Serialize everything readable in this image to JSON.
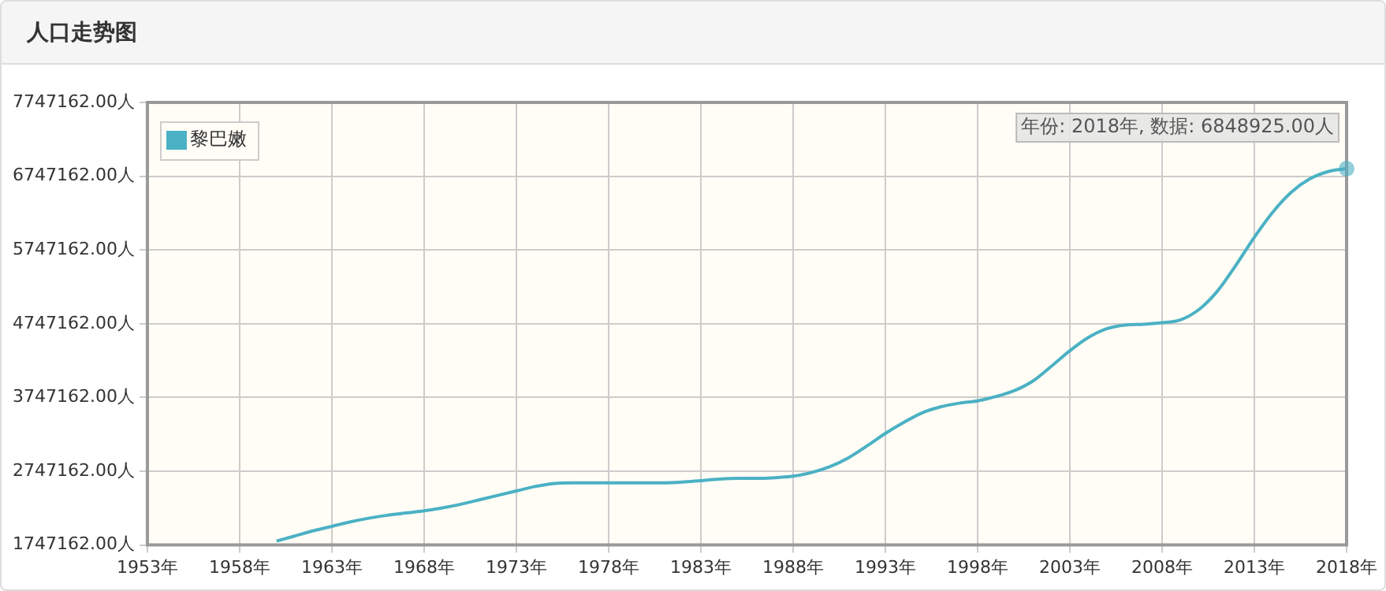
{
  "chart_data": {
    "type": "line",
    "title": "人口走势图",
    "x": [
      1960,
      1961,
      1962,
      1963,
      1964,
      1965,
      1966,
      1967,
      1968,
      1969,
      1970,
      1971,
      1972,
      1973,
      1974,
      1975,
      1976,
      1977,
      1978,
      1979,
      1980,
      1981,
      1982,
      1983,
      1984,
      1985,
      1986,
      1987,
      1988,
      1989,
      1990,
      1991,
      1992,
      1993,
      1994,
      1995,
      1996,
      1997,
      1998,
      1999,
      2000,
      2001,
      2002,
      2003,
      2004,
      2005,
      2006,
      2007,
      2008,
      2009,
      2010,
      2011,
      2012,
      2013,
      2014,
      2015,
      2016,
      2017,
      2018
    ],
    "series": [
      {
        "name": "黎巴嫩",
        "color": "#4bb1c4",
        "values": [
          1800000,
          1870000,
          1940000,
          2000000,
          2060000,
          2110000,
          2150000,
          2180000,
          2210000,
          2250000,
          2300000,
          2360000,
          2420000,
          2480000,
          2540000,
          2580000,
          2590000,
          2590000,
          2590000,
          2590000,
          2590000,
          2590000,
          2600000,
          2620000,
          2640000,
          2650000,
          2650000,
          2660000,
          2680000,
          2730000,
          2810000,
          2930000,
          3090000,
          3260000,
          3410000,
          3540000,
          3620000,
          3670000,
          3700000,
          3760000,
          3840000,
          3970000,
          4170000,
          4380000,
          4560000,
          4680000,
          4730000,
          4740000,
          4760000,
          4800000,
          4940000,
          5190000,
          5540000,
          5920000,
          6260000,
          6530000,
          6710000,
          6810000,
          6848925
        ]
      }
    ],
    "xlim": [
      1953,
      2018
    ],
    "xticks": [
      {
        "value": 1953,
        "label": "1953年"
      },
      {
        "value": 1958,
        "label": "1958年"
      },
      {
        "value": 1963,
        "label": "1963年"
      },
      {
        "value": 1968,
        "label": "1968年"
      },
      {
        "value": 1973,
        "label": "1973年"
      },
      {
        "value": 1978,
        "label": "1978年"
      },
      {
        "value": 1983,
        "label": "1983年"
      },
      {
        "value": 1988,
        "label": "1988年"
      },
      {
        "value": 1993,
        "label": "1993年"
      },
      {
        "value": 1998,
        "label": "1998年"
      },
      {
        "value": 2003,
        "label": "2003年"
      },
      {
        "value": 2008,
        "label": "2008年"
      },
      {
        "value": 2013,
        "label": "2013年"
      },
      {
        "value": 2018,
        "label": "2018年"
      }
    ],
    "ylim": [
      1747162,
      7747162
    ],
    "yticks": [
      {
        "value": 1747162,
        "label": "1747162.00人"
      },
      {
        "value": 2747162,
        "label": "2747162.00人"
      },
      {
        "value": 3747162,
        "label": "3747162.00人"
      },
      {
        "value": 4747162,
        "label": "4747162.00人"
      },
      {
        "value": 5747162,
        "label": "5747162.00人"
      },
      {
        "value": 6747162,
        "label": "6747162.00人"
      },
      {
        "value": 7747162,
        "label": "7747162.00人"
      }
    ],
    "annotations": [
      {
        "text": "年份: 2018年, 数据: 6848925.00人",
        "x": 2018,
        "y": 6848925
      }
    ],
    "grid": true,
    "legend": "top left",
    "marker": "none",
    "line_style": "solid"
  }
}
